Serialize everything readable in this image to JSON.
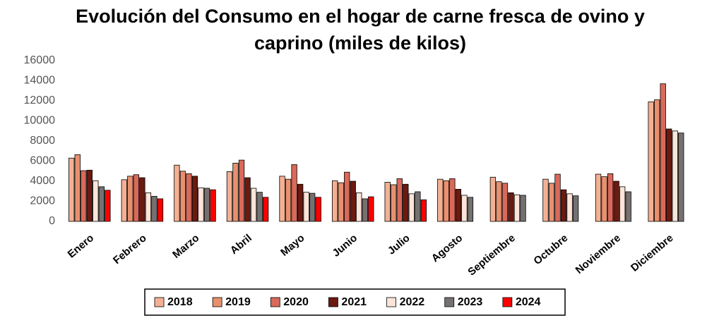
{
  "chart_data": {
    "type": "bar",
    "title": "Evolución del Consumo en el hogar de carne fresca de ovino y caprino (miles de kilos)",
    "categories": [
      "Enero",
      "Febrero",
      "Marzo",
      "Abril",
      "Mayo",
      "Junio",
      "Julio",
      "Agosto",
      "Septiembre",
      "Octubre",
      "Noviembre",
      "Diciembre"
    ],
    "series": [
      {
        "name": "2018",
        "color": "#f4b093",
        "values": [
          6300,
          4150,
          5600,
          4950,
          4500,
          4050,
          3900,
          4200,
          4400,
          4200,
          4700,
          11900
        ]
      },
      {
        "name": "2019",
        "color": "#e8906e",
        "values": [
          6650,
          4500,
          5000,
          5800,
          4200,
          3850,
          3650,
          4050,
          3950,
          3800,
          4450,
          12100
        ]
      },
      {
        "name": "2020",
        "color": "#d9695a",
        "values": [
          5050,
          4650,
          4750,
          6100,
          5650,
          4900,
          4250,
          4250,
          3800,
          4700,
          4750,
          13700
        ]
      },
      {
        "name": "2021",
        "color": "#6b1a10",
        "values": [
          5100,
          4350,
          4500,
          4350,
          3700,
          4000,
          3700,
          3200,
          2850,
          3150,
          4000,
          9200
        ]
      },
      {
        "name": "2022",
        "color": "#fce4d8",
        "values": [
          4050,
          2850,
          3350,
          3300,
          2900,
          2850,
          2750,
          2600,
          2650,
          2750,
          3450,
          9000
        ]
      },
      {
        "name": "2023",
        "color": "#767171",
        "values": [
          3450,
          2500,
          3300,
          2900,
          2800,
          2250,
          2950,
          2400,
          2600,
          2550,
          2950,
          8800
        ]
      },
      {
        "name": "2024",
        "color": "#ff0000",
        "values": [
          3100,
          2250,
          3150,
          2400,
          2400,
          2450,
          2150,
          null,
          null,
          null,
          null,
          null
        ]
      }
    ],
    "ylim": [
      0,
      16000
    ],
    "yticks": [
      0,
      2000,
      4000,
      6000,
      8000,
      10000,
      12000,
      14000,
      16000
    ],
    "grid": false,
    "legend": "bottom"
  }
}
